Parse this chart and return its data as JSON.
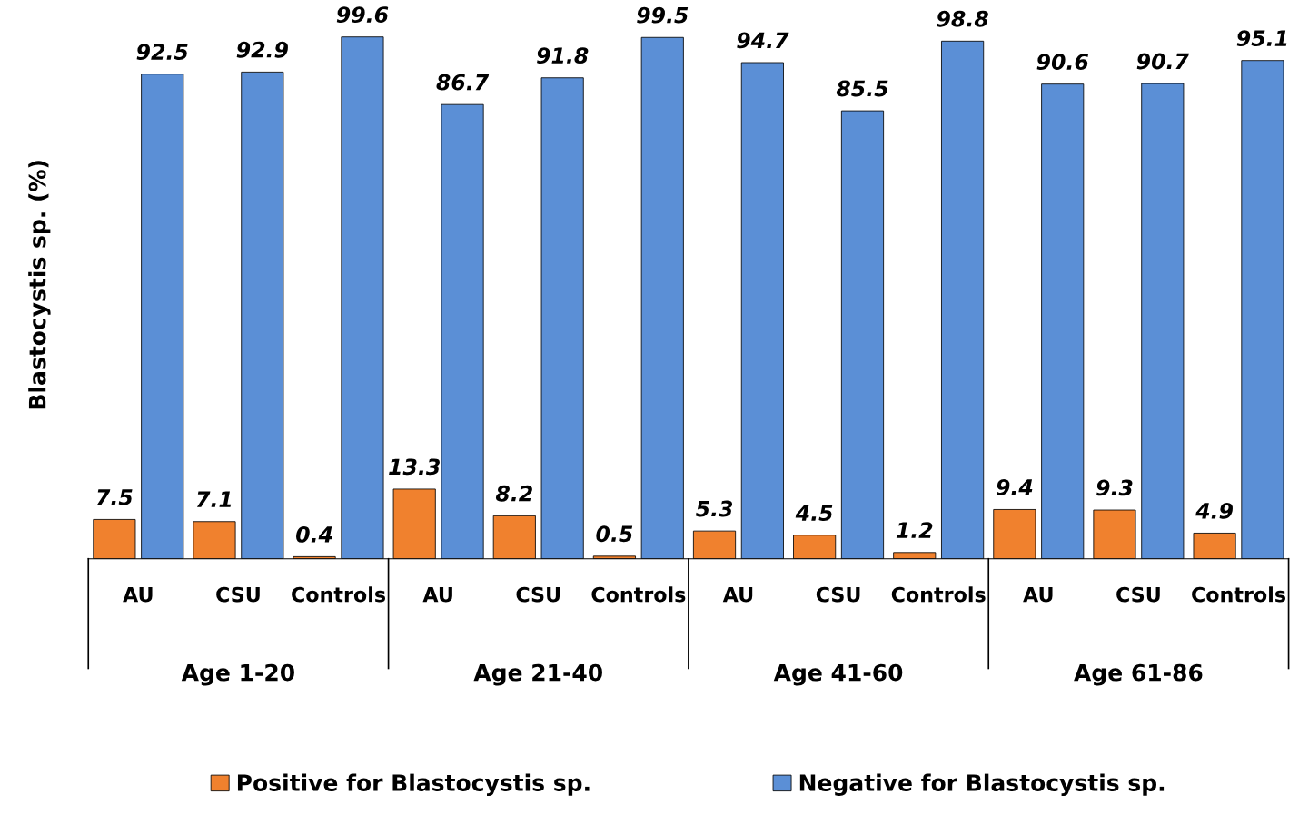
{
  "chart_data": {
    "type": "bar",
    "ylabel": "Blastocystis sp. (%)",
    "categories": [
      "AU",
      "CSU",
      "Controls",
      "AU",
      "CSU",
      "Controls",
      "AU",
      "CSU",
      "Controls",
      "AU",
      "CSU",
      "Controls"
    ],
    "series": [
      {
        "name": "Positive for Blastocystis sp.",
        "color": "#f0812e",
        "values": [
          7.5,
          7.1,
          0.4,
          13.3,
          8.2,
          0.5,
          5.3,
          4.5,
          1.2,
          9.4,
          9.3,
          4.9
        ]
      },
      {
        "name": "Negative for Blastocystis sp.",
        "color": "#5b8fd6",
        "values": [
          92.5,
          92.9,
          99.6,
          86.7,
          91.8,
          99.5,
          94.7,
          85.5,
          98.8,
          90.6,
          90.7,
          95.1
        ]
      }
    ],
    "annotations": [
      "Age 1-20",
      "Age 21-40",
      "Age 41-60",
      "Age 61-86"
    ],
    "tick_labels": "x",
    "data_labels": true,
    "legend": "bottom",
    "grid": false
  }
}
